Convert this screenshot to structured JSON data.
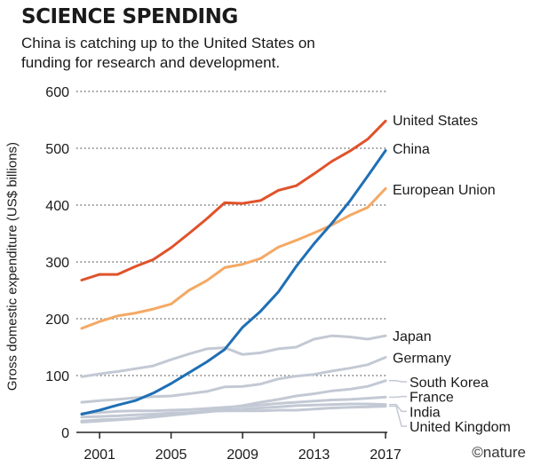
{
  "title": "SCIENCE SPENDING",
  "subtitle": "China is catching up to the United States on funding for research and development.",
  "credit": "©nature",
  "chart_data": {
    "type": "line",
    "xlabel": "",
    "ylabel": "Gross domestic expenditure (US$ billions)",
    "xlim": [
      2000,
      2017
    ],
    "ylim": [
      0,
      600
    ],
    "yticks": [
      "0",
      "100",
      "200",
      "300",
      "400",
      "500",
      "600"
    ],
    "xticks": [
      "2001",
      "2005",
      "2009",
      "2013",
      "2017"
    ],
    "grid": "horizontal dotted",
    "legend": "direct labels at line ends (right)",
    "x": [
      2000,
      2001,
      2002,
      2003,
      2004,
      2005,
      2006,
      2007,
      2008,
      2009,
      2010,
      2011,
      2012,
      2013,
      2014,
      2015,
      2016,
      2017
    ],
    "series": [
      {
        "name": "United States",
        "color": "#e0522a",
        "width": 3,
        "values": [
          268,
          278,
          278,
          292,
          304,
          325,
          350,
          376,
          404,
          403,
          408,
          426,
          434,
          455,
          477,
          495,
          516,
          548
        ]
      },
      {
        "name": "China",
        "color": "#1f6fb5",
        "width": 3,
        "values": [
          32,
          39,
          48,
          56,
          69,
          86,
          105,
          124,
          146,
          185,
          213,
          247,
          292,
          332,
          368,
          407,
          451,
          496
        ]
      },
      {
        "name": "European Union",
        "color": "#f4a964",
        "width": 3,
        "values": [
          183,
          195,
          205,
          210,
          217,
          226,
          250,
          267,
          290,
          296,
          306,
          326,
          338,
          351,
          365,
          382,
          396,
          429
        ]
      },
      {
        "name": "Japan",
        "color": "#c3c9d4",
        "width": 3,
        "values": [
          98,
          103,
          107,
          112,
          117,
          128,
          138,
          147,
          149,
          137,
          140,
          147,
          150,
          164,
          170,
          168,
          164,
          170
        ]
      },
      {
        "name": "Germany",
        "color": "#c3c9d4",
        "width": 3,
        "values": [
          53,
          56,
          58,
          61,
          63,
          64,
          68,
          72,
          80,
          81,
          85,
          94,
          99,
          102,
          108,
          113,
          119,
          132
        ]
      },
      {
        "name": "South Korea",
        "color": "#c3c9d4",
        "width": 3,
        "values": [
          20,
          22,
          23,
          25,
          28,
          31,
          34,
          38,
          43,
          47,
          53,
          58,
          64,
          68,
          73,
          76,
          81,
          91
        ]
      },
      {
        "name": "France",
        "color": "#c3c9d4",
        "width": 3,
        "values": [
          33,
          35,
          37,
          38,
          38,
          39,
          40,
          42,
          44,
          46,
          48,
          51,
          53,
          55,
          57,
          58,
          60,
          62
        ]
      },
      {
        "name": "India",
        "color": "#c3c9d4",
        "width": 3,
        "values": [
          18,
          20,
          22,
          24,
          27,
          30,
          33,
          36,
          39,
          41,
          43,
          45,
          47,
          48,
          49,
          50,
          50,
          49
        ]
      },
      {
        "name": "United Kingdom",
        "color": "#c3c9d4",
        "width": 3,
        "values": [
          27,
          28,
          29,
          31,
          32,
          34,
          35,
          37,
          38,
          38,
          38,
          39,
          39,
          41,
          43,
          44,
          45,
          46
        ]
      }
    ],
    "end_labels": [
      {
        "series": "United States",
        "label_y": 550,
        "leader": false
      },
      {
        "series": "China",
        "label_y": 500,
        "leader": false
      },
      {
        "series": "European Union",
        "label_y": 428,
        "leader": false
      },
      {
        "series": "Japan",
        "label_y": 170,
        "leader": false
      },
      {
        "series": "Germany",
        "label_y": 132,
        "leader": false
      },
      {
        "series": "South Korea",
        "label_y": 89,
        "leader": true
      },
      {
        "series": "France",
        "label_y": 63,
        "leader": true
      },
      {
        "series": "India",
        "label_y": 37,
        "leader": true
      },
      {
        "series": "United Kingdom",
        "label_y": 11,
        "leader": true
      }
    ]
  }
}
